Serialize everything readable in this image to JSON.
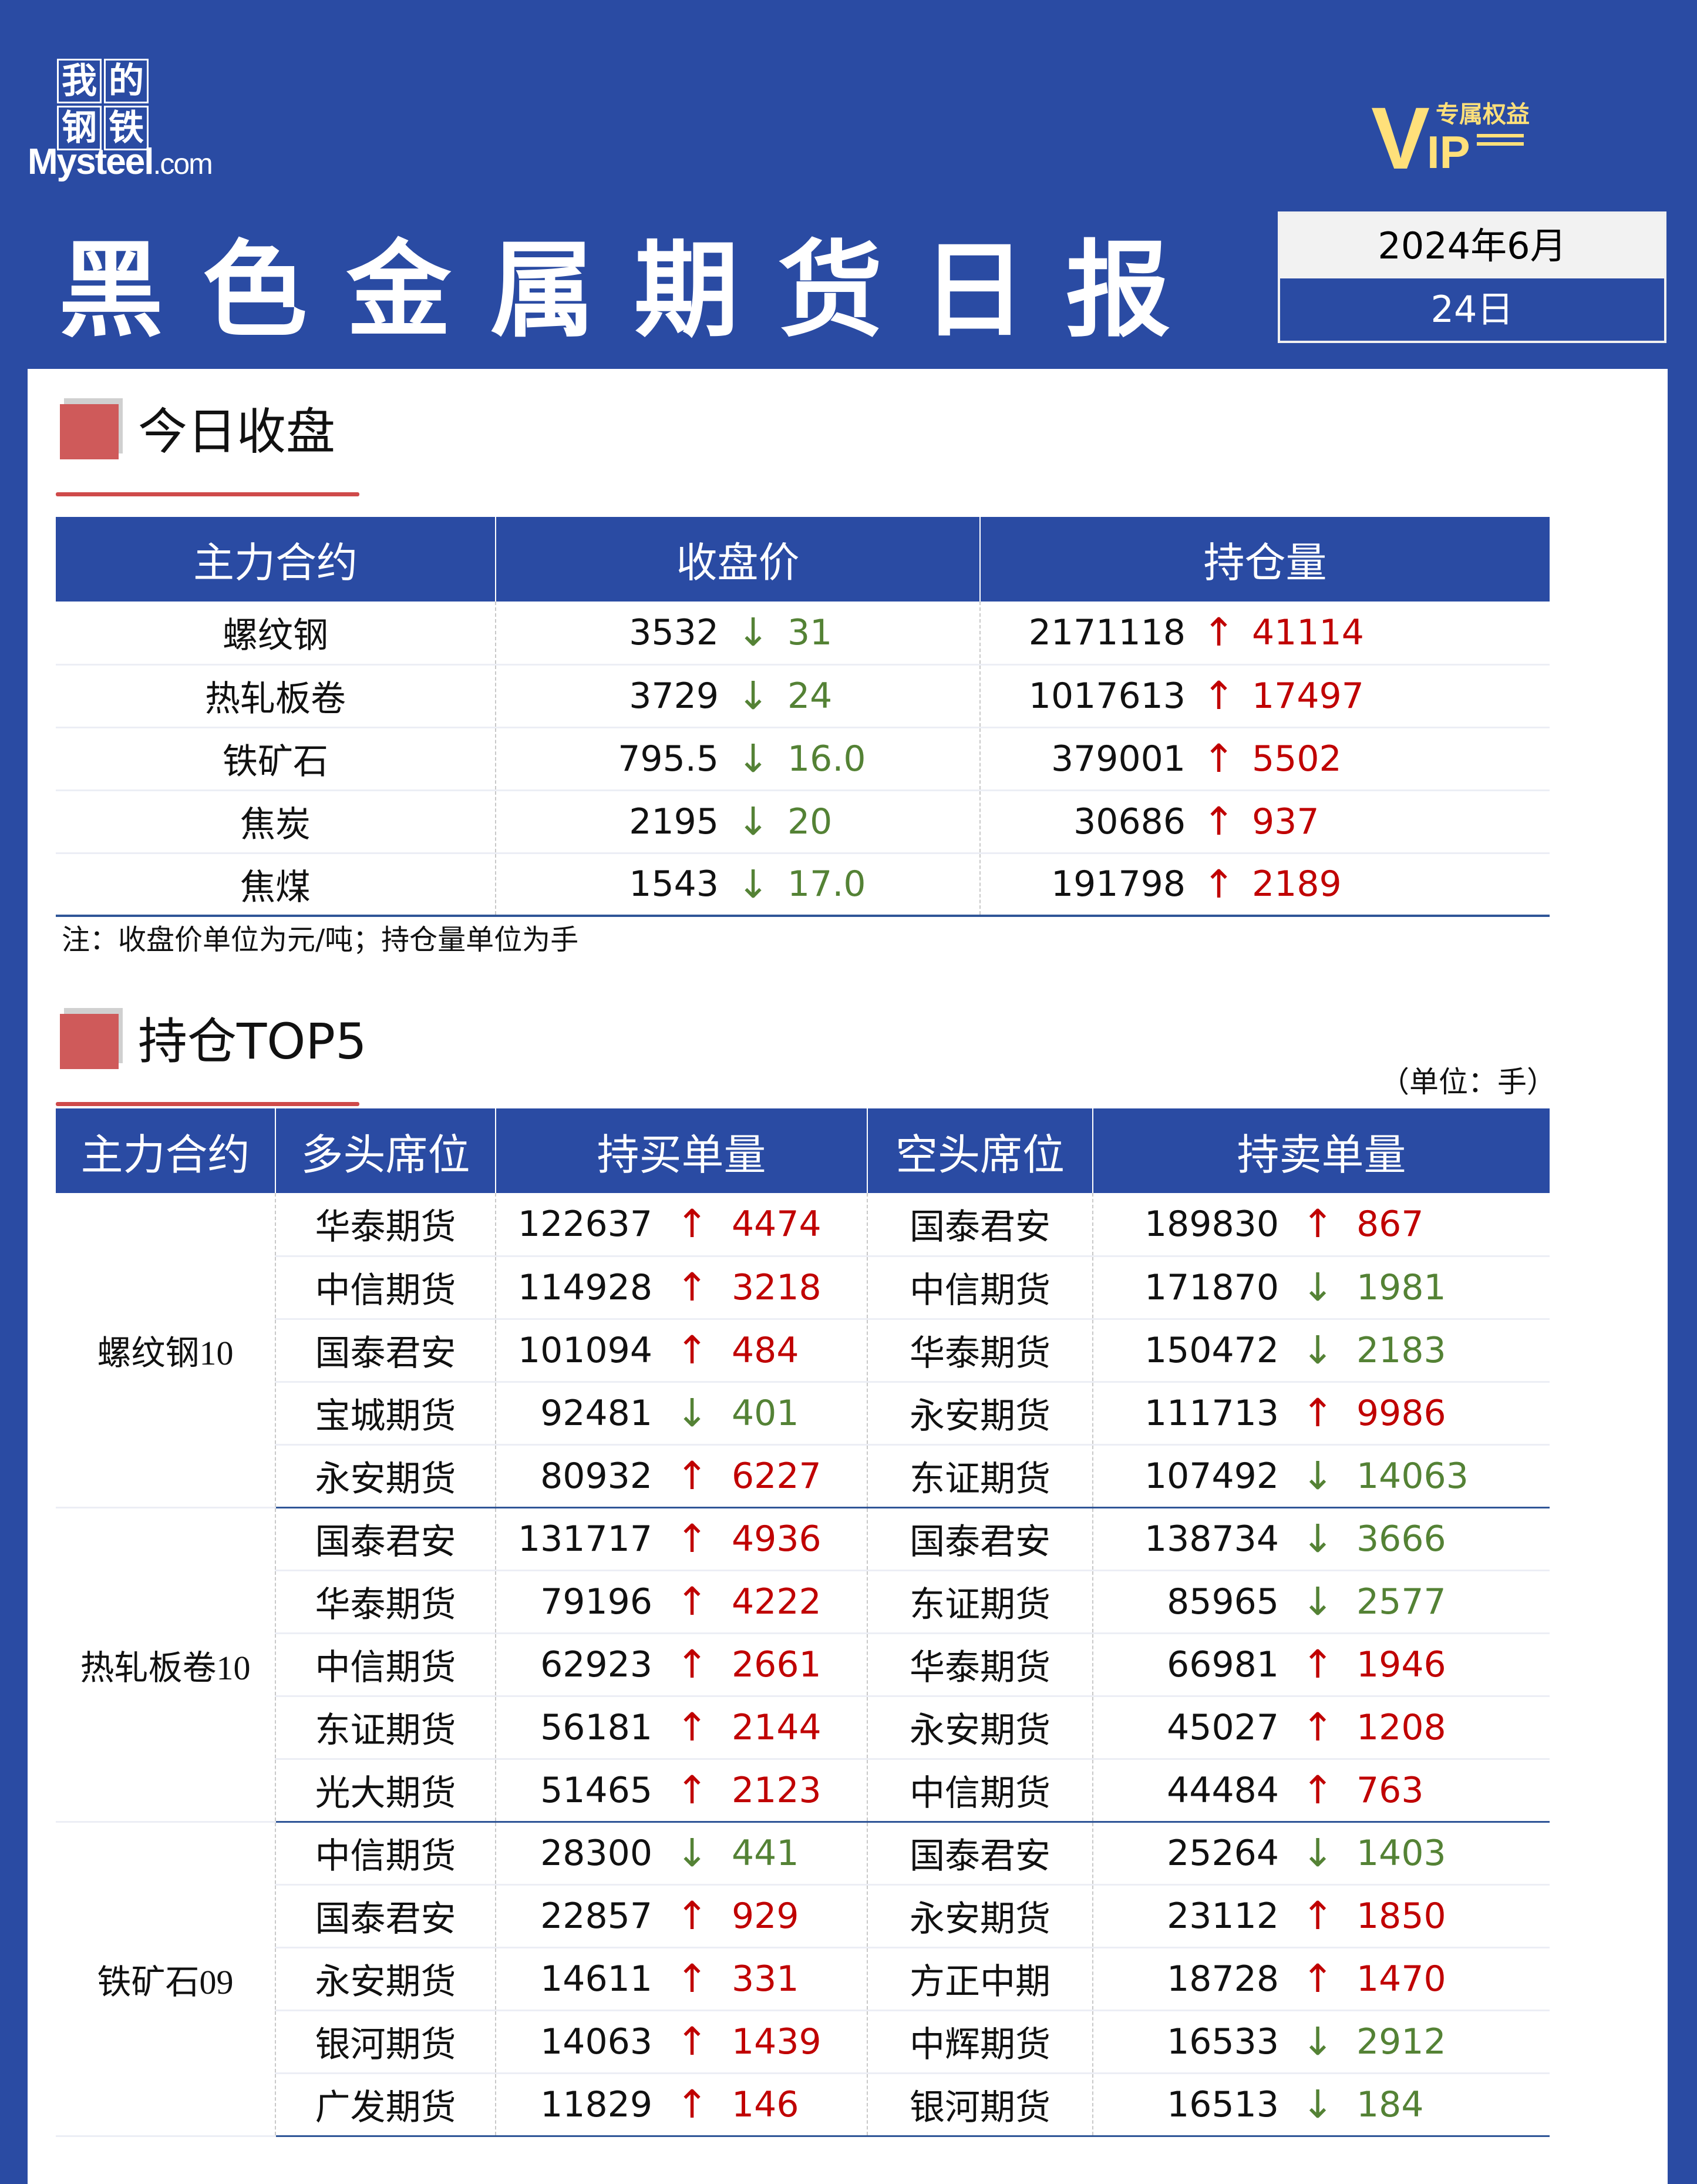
{
  "brand": {
    "logo_cn": [
      "我",
      "的",
      "钢",
      "铁"
    ],
    "logo_en": "Mysteel",
    "logo_domain": ".com"
  },
  "vip": {
    "v": "V",
    "ip": "IP",
    "tag": "专属权益"
  },
  "title": "黑色金属期货日报",
  "date": {
    "year_month": "2024年6月",
    "day": "24日"
  },
  "colors": {
    "header_blue": "#2a4ba3",
    "up_red": "#c00000",
    "down_green": "#548235",
    "accent_red": "#cf5a5a"
  },
  "section1": {
    "heading": "今日收盘",
    "headers": [
      "主力合约",
      "收盘价",
      "持仓量"
    ],
    "rows": [
      {
        "contract": "螺纹钢",
        "close": "3532",
        "close_dir": "down",
        "close_change": "31",
        "oi": "2171118",
        "oi_dir": "up",
        "oi_change": "41114"
      },
      {
        "contract": "热轧板卷",
        "close": "3729",
        "close_dir": "down",
        "close_change": "24",
        "oi": "1017613",
        "oi_dir": "up",
        "oi_change": "17497"
      },
      {
        "contract": "铁矿石",
        "close": "795.5",
        "close_dir": "down",
        "close_change": "16.0",
        "oi": "379001",
        "oi_dir": "up",
        "oi_change": "5502"
      },
      {
        "contract": "焦炭",
        "close": "2195",
        "close_dir": "down",
        "close_change": "20",
        "oi": "30686",
        "oi_dir": "up",
        "oi_change": "937"
      },
      {
        "contract": "焦煤",
        "close": "1543",
        "close_dir": "down",
        "close_change": "17.0",
        "oi": "191798",
        "oi_dir": "up",
        "oi_change": "2189"
      }
    ],
    "note": "注：收盘价单位为元/吨；持仓量单位为手"
  },
  "section2": {
    "heading": "持仓TOP5",
    "unit": "（单位：手）",
    "headers": [
      "主力合约",
      "多头席位",
      "持买单量",
      "空头席位",
      "持卖单量"
    ],
    "groups": [
      {
        "contract_name": "螺纹钢",
        "contract_month": "10",
        "rows": [
          {
            "long": "华泰期货",
            "buy": "122637",
            "buy_dir": "up",
            "buy_change": "4474",
            "short": "国泰君安",
            "sell": "189830",
            "sell_dir": "up",
            "sell_change": "867"
          },
          {
            "long": "中信期货",
            "buy": "114928",
            "buy_dir": "up",
            "buy_change": "3218",
            "short": "中信期货",
            "sell": "171870",
            "sell_dir": "down",
            "sell_change": "1981"
          },
          {
            "long": "国泰君安",
            "buy": "101094",
            "buy_dir": "up",
            "buy_change": "484",
            "short": "华泰期货",
            "sell": "150472",
            "sell_dir": "down",
            "sell_change": "2183"
          },
          {
            "long": "宝城期货",
            "buy": "92481",
            "buy_dir": "down",
            "buy_change": "401",
            "short": "永安期货",
            "sell": "111713",
            "sell_dir": "up",
            "sell_change": "9986"
          },
          {
            "long": "永安期货",
            "buy": "80932",
            "buy_dir": "up",
            "buy_change": "6227",
            "short": "东证期货",
            "sell": "107492",
            "sell_dir": "down",
            "sell_change": "14063"
          }
        ]
      },
      {
        "contract_name": "热轧板卷",
        "contract_month": "10",
        "rows": [
          {
            "long": "国泰君安",
            "buy": "131717",
            "buy_dir": "up",
            "buy_change": "4936",
            "short": "国泰君安",
            "sell": "138734",
            "sell_dir": "down",
            "sell_change": "3666"
          },
          {
            "long": "华泰期货",
            "buy": "79196",
            "buy_dir": "up",
            "buy_change": "4222",
            "short": "东证期货",
            "sell": "85965",
            "sell_dir": "down",
            "sell_change": "2577"
          },
          {
            "long": "中信期货",
            "buy": "62923",
            "buy_dir": "up",
            "buy_change": "2661",
            "short": "华泰期货",
            "sell": "66981",
            "sell_dir": "up",
            "sell_change": "1946"
          },
          {
            "long": "东证期货",
            "buy": "56181",
            "buy_dir": "up",
            "buy_change": "2144",
            "short": "永安期货",
            "sell": "45027",
            "sell_dir": "up",
            "sell_change": "1208"
          },
          {
            "long": "光大期货",
            "buy": "51465",
            "buy_dir": "up",
            "buy_change": "2123",
            "short": "中信期货",
            "sell": "44484",
            "sell_dir": "up",
            "sell_change": "763"
          }
        ]
      },
      {
        "contract_name": "铁矿石",
        "contract_month": "09",
        "rows": [
          {
            "long": "中信期货",
            "buy": "28300",
            "buy_dir": "down",
            "buy_change": "441",
            "short": "国泰君安",
            "sell": "25264",
            "sell_dir": "down",
            "sell_change": "1403"
          },
          {
            "long": "国泰君安",
            "buy": "22857",
            "buy_dir": "up",
            "buy_change": "929",
            "short": "永安期货",
            "sell": "23112",
            "sell_dir": "up",
            "sell_change": "1850"
          },
          {
            "long": "永安期货",
            "buy": "14611",
            "buy_dir": "up",
            "buy_change": "331",
            "short": "方正中期",
            "sell": "18728",
            "sell_dir": "up",
            "sell_change": "1470"
          },
          {
            "long": "银河期货",
            "buy": "14063",
            "buy_dir": "up",
            "buy_change": "1439",
            "short": "中辉期货",
            "sell": "16533",
            "sell_dir": "down",
            "sell_change": "2912"
          },
          {
            "long": "广发期货",
            "buy": "11829",
            "buy_dir": "up",
            "buy_change": "146",
            "short": "银河期货",
            "sell": "16513",
            "sell_dir": "down",
            "sell_change": "184"
          }
        ]
      }
    ]
  }
}
